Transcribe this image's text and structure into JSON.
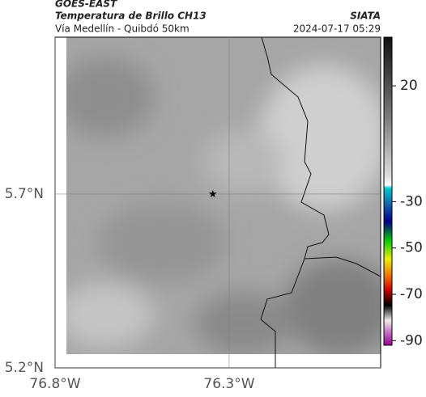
{
  "header": {
    "title": "GOES-EAST",
    "subtitle": "Temperatura de Brillo CH13",
    "org": "SIATA",
    "location": "Vía Medellín - Quibdó 50km",
    "datetime": "2024-07-17 05:29"
  },
  "map": {
    "xlim": [
      -76.8,
      -75.865
    ],
    "ylim": [
      5.2,
      6.151
    ],
    "xticks": [
      {
        "value": -76.8,
        "label": "76.8°W"
      },
      {
        "value": -76.3,
        "label": "76.3°W"
      }
    ],
    "yticks": [
      {
        "value": 5.2,
        "label": "5.2°N"
      },
      {
        "value": 5.7,
        "label": "5.7°N"
      }
    ],
    "marker": {
      "lon": -76.347,
      "lat": 5.7
    }
  },
  "colorbar": {
    "lim": [
      41,
      -92
    ],
    "ticks": [
      20,
      -30,
      -50,
      -70,
      -90
    ]
  }
}
